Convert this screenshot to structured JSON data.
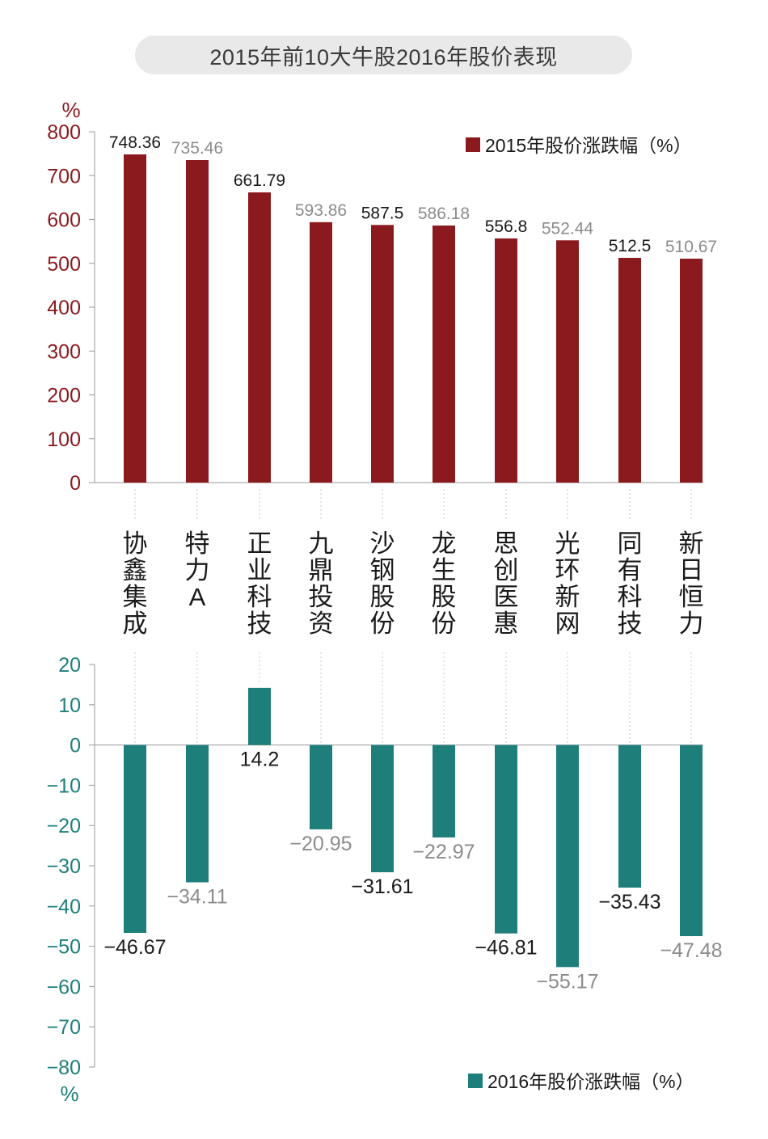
{
  "header": {
    "title": "2015年前10大牛股2016年股价表现"
  },
  "chart_data": [
    {
      "type": "bar",
      "categories": [
        "协鑫集成",
        "特力A",
        "正业科技",
        "九鼎投资",
        "沙钢股份",
        "龙生股份",
        "思创医惠",
        "光环新网",
        "同有科技",
        "新日恒力"
      ],
      "series": [
        {
          "name": "2015年股价涨跌幅（%）",
          "values": [
            748.36,
            735.46,
            661.79,
            593.86,
            587.5,
            586.18,
            556.8,
            552.44,
            512.5,
            510.67
          ],
          "labels": [
            "748.36",
            "735.46",
            "661.79",
            "593.86",
            "587.5",
            "586.18",
            "556.8",
            "552.44",
            "512.5",
            "510.67"
          ]
        }
      ],
      "unit": "%",
      "ylim": [
        0,
        800
      ],
      "yticks": [
        "800",
        "700",
        "600",
        "500",
        "400",
        "300",
        "200",
        "100",
        "0"
      ],
      "legend": "top-right",
      "colors": {
        "bar": "#8b1a1f",
        "axis": "#8b1a1f",
        "label_dark": "#1a1a1a",
        "label_light": "#8c8c8c"
      }
    },
    {
      "type": "bar",
      "categories": [
        "协鑫集成",
        "特力A",
        "正业科技",
        "九鼎投资",
        "沙钢股份",
        "龙生股份",
        "思创医惠",
        "光环新网",
        "同有科技",
        "新日恒力"
      ],
      "series": [
        {
          "name": "2016年股价涨跌幅（%）",
          "values": [
            -46.67,
            -34.11,
            14.2,
            -20.95,
            -31.61,
            -22.97,
            -46.81,
            -55.17,
            -35.43,
            -47.48
          ],
          "labels": [
            "−46.67",
            "−34.11",
            "14.2",
            "−20.95",
            "−31.61",
            "−22.97",
            "−46.81",
            "−55.17",
            "−35.43",
            "−47.48"
          ]
        }
      ],
      "unit": "%",
      "ylim": [
        -80,
        20
      ],
      "yticks": [
        "20",
        "10",
        "0",
        "−10",
        "−20",
        "−30",
        "−40",
        "−50",
        "−60",
        "−70",
        "−80"
      ],
      "legend": "bottom-right",
      "colors": {
        "bar": "#1e7f7a",
        "axis": "#1e7f7a",
        "label_dark": "#1a1a1a",
        "label_light": "#8c8c8c"
      }
    }
  ]
}
